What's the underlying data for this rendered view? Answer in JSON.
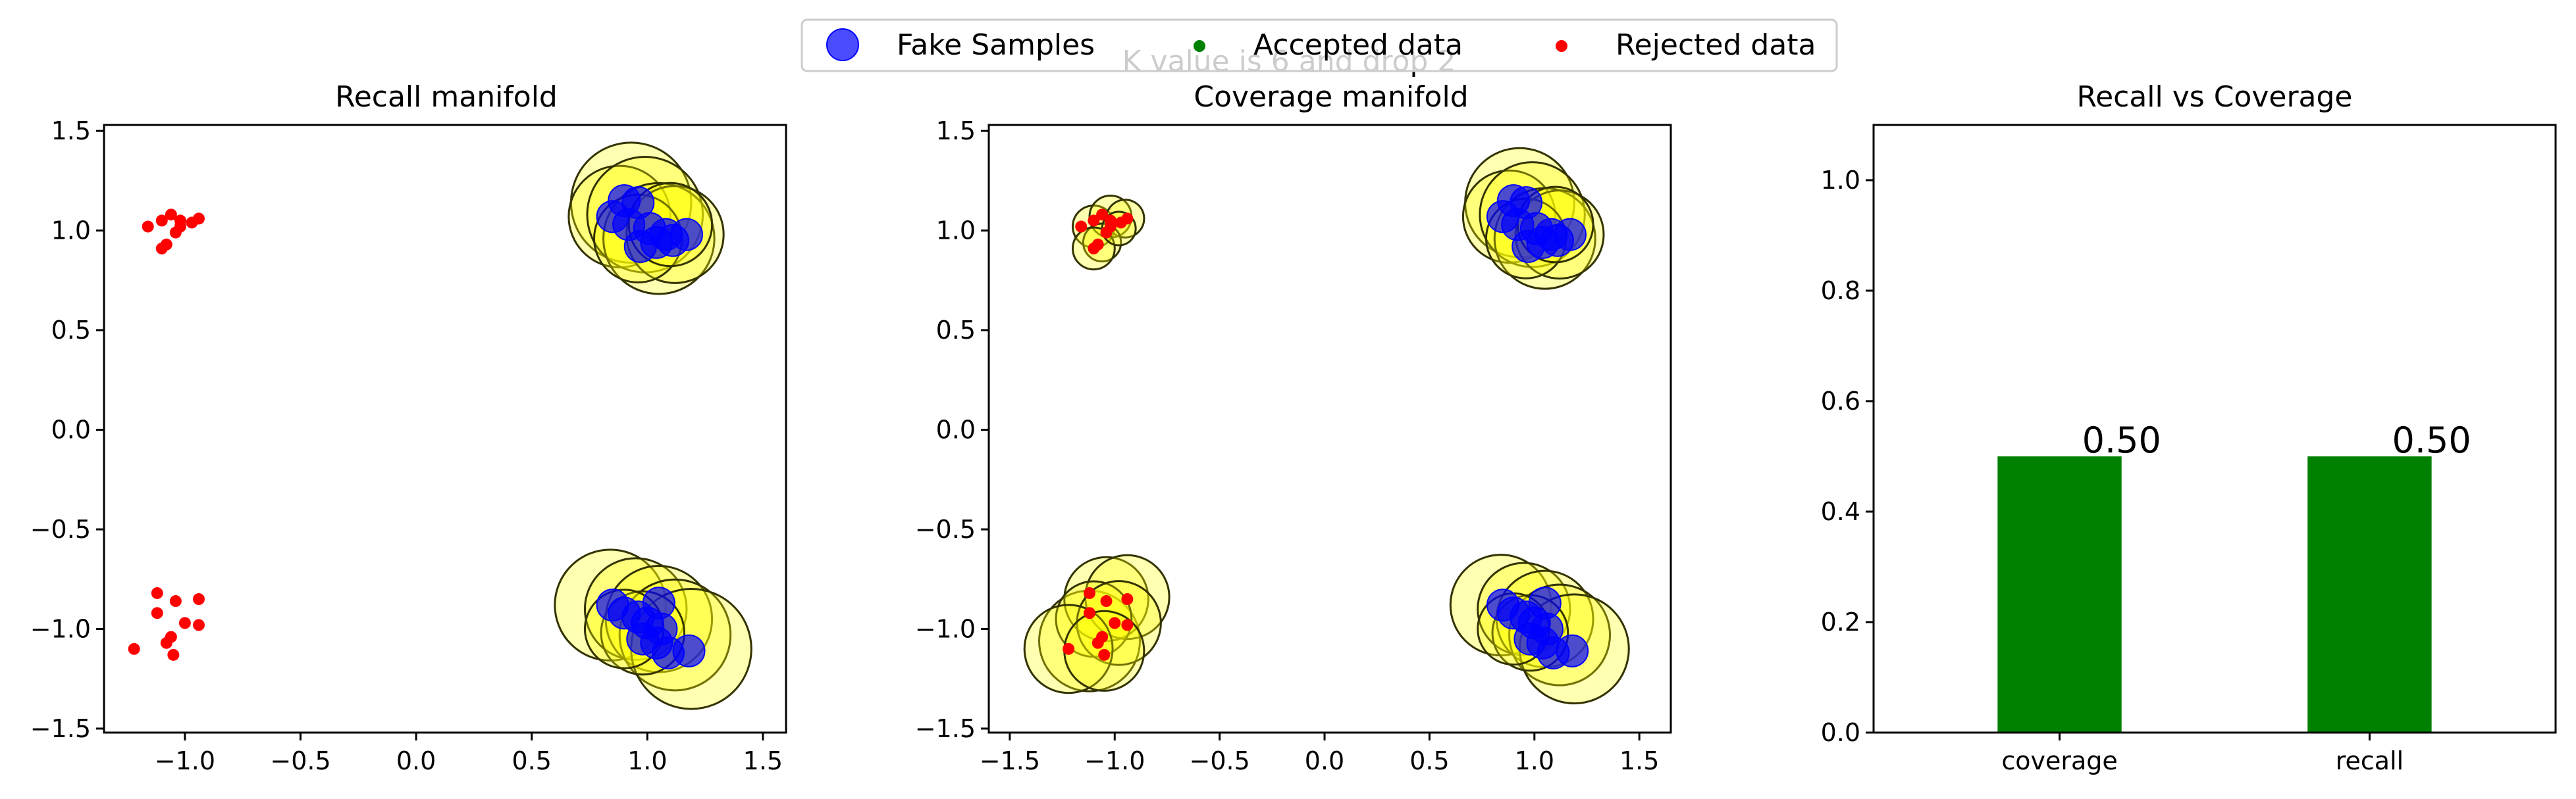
{
  "figure": {
    "suptitle": "K value is 6 and drop 2",
    "legend": [
      {
        "label": "Fake Samples",
        "color": "#0000ff",
        "marker": "large-circle"
      },
      {
        "label": "Accepted data",
        "color": "#008000",
        "marker": "small-dot"
      },
      {
        "label": "Rejected data",
        "color": "#ff0000",
        "marker": "small-dot"
      }
    ]
  },
  "colors": {
    "fake": "#0000ff",
    "accepted": "#008000",
    "rejected": "#ff0000",
    "manifold_fill": "#ffff00",
    "manifold_edge": "#333300",
    "bar": "#008000"
  },
  "chart_data": [
    {
      "type": "scatter",
      "title": "Recall manifold",
      "xlim": [
        -1.35,
        1.6
      ],
      "ylim": [
        -1.52,
        1.53
      ],
      "xticks": [
        "−1.0",
        "−0.5",
        "0.0",
        "0.5",
        "1.0",
        "1.5"
      ],
      "xtick_values": [
        -1.0,
        -0.5,
        0.0,
        0.5,
        1.0,
        1.5
      ],
      "yticks": [
        "−1.5",
        "−1.0",
        "−0.5",
        "0.0",
        "0.5",
        "1.0",
        "1.5"
      ],
      "ytick_values": [
        -1.5,
        -1.0,
        -0.5,
        0.0,
        0.5,
        1.0,
        1.5
      ],
      "manifolds": [
        {
          "x": 0.93,
          "y": 1.14,
          "r": 0.26
        },
        {
          "x": 0.88,
          "y": 1.07,
          "r": 0.22
        },
        {
          "x": 0.99,
          "y": 1.08,
          "r": 0.25
        },
        {
          "x": 1.05,
          "y": 0.96,
          "r": 0.24
        },
        {
          "x": 1.12,
          "y": 0.98,
          "r": 0.21
        },
        {
          "x": 0.96,
          "y": 0.96,
          "r": 0.19
        },
        {
          "x": 1.1,
          "y": 1.03,
          "r": 0.18
        },
        {
          "x": 0.84,
          "y": -0.88,
          "r": 0.24
        },
        {
          "x": 0.95,
          "y": -0.9,
          "r": 0.22
        },
        {
          "x": 1.05,
          "y": -0.95,
          "r": 0.23
        },
        {
          "x": 1.12,
          "y": -1.03,
          "r": 0.24
        },
        {
          "x": 1.19,
          "y": -1.1,
          "r": 0.26
        },
        {
          "x": 0.98,
          "y": -1.02,
          "r": 0.18
        },
        {
          "x": 0.9,
          "y": -1.0,
          "r": 0.17
        }
      ],
      "fake": [
        {
          "x": 0.9,
          "y": 1.15
        },
        {
          "x": 0.96,
          "y": 1.14
        },
        {
          "x": 0.85,
          "y": 1.07
        },
        {
          "x": 0.92,
          "y": 1.03
        },
        {
          "x": 1.01,
          "y": 1.01
        },
        {
          "x": 1.08,
          "y": 0.98
        },
        {
          "x": 1.17,
          "y": 0.98
        },
        {
          "x": 0.97,
          "y": 0.92
        },
        {
          "x": 1.04,
          "y": 0.94
        },
        {
          "x": 1.11,
          "y": 0.95
        },
        {
          "x": 0.85,
          "y": -0.88
        },
        {
          "x": 0.9,
          "y": -0.92
        },
        {
          "x": 0.96,
          "y": -0.94
        },
        {
          "x": 1.0,
          "y": -0.97
        },
        {
          "x": 1.05,
          "y": -0.87
        },
        {
          "x": 1.06,
          "y": -1.0
        },
        {
          "x": 0.98,
          "y": -1.05
        },
        {
          "x": 1.04,
          "y": -1.07
        },
        {
          "x": 1.09,
          "y": -1.12
        },
        {
          "x": 1.18,
          "y": -1.11
        }
      ],
      "accepted": [],
      "rejected": [
        {
          "x": -1.16,
          "y": 1.02
        },
        {
          "x": -1.1,
          "y": 1.05
        },
        {
          "x": -1.06,
          "y": 1.08
        },
        {
          "x": -1.02,
          "y": 1.05
        },
        {
          "x": -0.97,
          "y": 1.04
        },
        {
          "x": -0.94,
          "y": 1.06
        },
        {
          "x": -1.04,
          "y": 0.99
        },
        {
          "x": -1.08,
          "y": 0.93
        },
        {
          "x": -1.1,
          "y": 0.91
        },
        {
          "x": -1.02,
          "y": 1.02
        },
        {
          "x": -1.12,
          "y": -0.82
        },
        {
          "x": -1.04,
          "y": -0.86
        },
        {
          "x": -0.94,
          "y": -0.85
        },
        {
          "x": -1.12,
          "y": -0.92
        },
        {
          "x": -1.0,
          "y": -0.97
        },
        {
          "x": -0.94,
          "y": -0.98
        },
        {
          "x": -1.06,
          "y": -1.04
        },
        {
          "x": -1.08,
          "y": -1.07
        },
        {
          "x": -1.05,
          "y": -1.13
        },
        {
          "x": -1.22,
          "y": -1.1
        }
      ]
    },
    {
      "type": "scatter",
      "title": "Coverage manifold",
      "xlim": [
        -1.6,
        1.65
      ],
      "ylim": [
        -1.52,
        1.53
      ],
      "xticks": [
        "−1.5",
        "−1.0",
        "−0.5",
        "0.0",
        "0.5",
        "1.0",
        "1.5"
      ],
      "xtick_values": [
        -1.5,
        -1.0,
        -0.5,
        0.0,
        0.5,
        1.0,
        1.5
      ],
      "yticks": [
        "−1.5",
        "−1.0",
        "−0.5",
        "0.0",
        "0.5",
        "1.0",
        "1.5"
      ],
      "ytick_values": [
        -1.5,
        -1.0,
        -0.5,
        0.0,
        0.5,
        1.0,
        1.5
      ],
      "manifolds": [
        {
          "x": 0.93,
          "y": 1.14,
          "r": 0.26
        },
        {
          "x": 0.88,
          "y": 1.07,
          "r": 0.22
        },
        {
          "x": 0.99,
          "y": 1.08,
          "r": 0.25
        },
        {
          "x": 1.05,
          "y": 0.96,
          "r": 0.24
        },
        {
          "x": 1.12,
          "y": 0.98,
          "r": 0.21
        },
        {
          "x": 0.96,
          "y": 0.96,
          "r": 0.19
        },
        {
          "x": 1.1,
          "y": 1.03,
          "r": 0.18
        },
        {
          "x": 0.84,
          "y": -0.88,
          "r": 0.24
        },
        {
          "x": 0.95,
          "y": -0.9,
          "r": 0.22
        },
        {
          "x": 1.05,
          "y": -0.95,
          "r": 0.23
        },
        {
          "x": 1.12,
          "y": -1.03,
          "r": 0.24
        },
        {
          "x": 1.19,
          "y": -1.1,
          "r": 0.26
        },
        {
          "x": 0.98,
          "y": -1.02,
          "r": 0.18
        },
        {
          "x": 0.9,
          "y": -1.0,
          "r": 0.17
        },
        {
          "x": -1.1,
          "y": 1.02,
          "r": 0.1
        },
        {
          "x": -1.02,
          "y": 1.07,
          "r": 0.1
        },
        {
          "x": -0.95,
          "y": 1.06,
          "r": 0.09
        },
        {
          "x": -1.06,
          "y": 0.94,
          "r": 0.09
        },
        {
          "x": -1.1,
          "y": 0.91,
          "r": 0.1
        },
        {
          "x": -0.98,
          "y": 1.01,
          "r": 0.08
        },
        {
          "x": -1.12,
          "y": -1.06,
          "r": 0.24
        },
        {
          "x": -1.04,
          "y": -0.85,
          "r": 0.2
        },
        {
          "x": -0.94,
          "y": -0.84,
          "r": 0.2
        },
        {
          "x": -1.1,
          "y": -0.95,
          "r": 0.18
        },
        {
          "x": -0.98,
          "y": -0.97,
          "r": 0.2
        },
        {
          "x": -1.22,
          "y": -1.1,
          "r": 0.21
        },
        {
          "x": -1.05,
          "y": -1.11,
          "r": 0.19
        }
      ],
      "fake": [
        {
          "x": 0.9,
          "y": 1.15
        },
        {
          "x": 0.96,
          "y": 1.14
        },
        {
          "x": 0.85,
          "y": 1.07
        },
        {
          "x": 0.92,
          "y": 1.03
        },
        {
          "x": 1.01,
          "y": 1.01
        },
        {
          "x": 1.08,
          "y": 0.98
        },
        {
          "x": 1.17,
          "y": 0.98
        },
        {
          "x": 0.97,
          "y": 0.92
        },
        {
          "x": 1.04,
          "y": 0.94
        },
        {
          "x": 1.11,
          "y": 0.95
        },
        {
          "x": 0.85,
          "y": -0.88
        },
        {
          "x": 0.9,
          "y": -0.92
        },
        {
          "x": 0.96,
          "y": -0.94
        },
        {
          "x": 1.0,
          "y": -0.97
        },
        {
          "x": 1.05,
          "y": -0.87
        },
        {
          "x": 1.06,
          "y": -1.0
        },
        {
          "x": 0.98,
          "y": -1.05
        },
        {
          "x": 1.04,
          "y": -1.07
        },
        {
          "x": 1.09,
          "y": -1.12
        },
        {
          "x": 1.18,
          "y": -1.11
        }
      ],
      "accepted": [],
      "rejected": [
        {
          "x": -1.16,
          "y": 1.02
        },
        {
          "x": -1.1,
          "y": 1.05
        },
        {
          "x": -1.06,
          "y": 1.08
        },
        {
          "x": -1.02,
          "y": 1.05
        },
        {
          "x": -0.97,
          "y": 1.04
        },
        {
          "x": -0.94,
          "y": 1.06
        },
        {
          "x": -1.04,
          "y": 0.99
        },
        {
          "x": -1.08,
          "y": 0.93
        },
        {
          "x": -1.1,
          "y": 0.91
        },
        {
          "x": -1.02,
          "y": 1.02
        },
        {
          "x": -1.12,
          "y": -0.82
        },
        {
          "x": -1.04,
          "y": -0.86
        },
        {
          "x": -0.94,
          "y": -0.85
        },
        {
          "x": -1.12,
          "y": -0.92
        },
        {
          "x": -1.0,
          "y": -0.97
        },
        {
          "x": -0.94,
          "y": -0.98
        },
        {
          "x": -1.06,
          "y": -1.04
        },
        {
          "x": -1.08,
          "y": -1.07
        },
        {
          "x": -1.05,
          "y": -1.13
        },
        {
          "x": -1.22,
          "y": -1.1
        }
      ]
    },
    {
      "type": "bar",
      "title": "Recall vs Coverage",
      "categories": [
        "coverage",
        "recall"
      ],
      "values": [
        0.5,
        0.5
      ],
      "value_labels": [
        "0.50",
        "0.50"
      ],
      "ylim": [
        0,
        1.1
      ],
      "yticks": [
        "0.0",
        "0.2",
        "0.4",
        "0.6",
        "0.8",
        "1.0"
      ],
      "ytick_values": [
        0.0,
        0.2,
        0.4,
        0.6,
        0.8,
        1.0
      ]
    }
  ]
}
